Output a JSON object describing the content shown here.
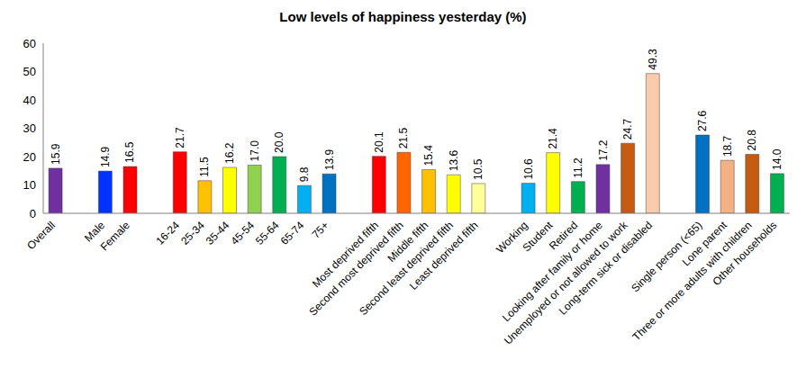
{
  "chart_data": {
    "type": "bar",
    "title": "Low levels of happiness yesterday (%)",
    "categories": [
      "Overall",
      null,
      "Male",
      "Female",
      null,
      "16-24",
      "25-34",
      "35-44",
      "45-54",
      "55-64",
      "65-74",
      "75+",
      null,
      "Most deprived fifth",
      "Second most deprived fifth",
      "Middle fifth",
      "Second least deprived fifth",
      "Least deprived fifth",
      null,
      "Working",
      "Student",
      "Retired",
      "Looking after family or home",
      "Unemployed or not allowed to work",
      "Long-term sick or disabled",
      null,
      "Single person (<65)",
      "Lone parent",
      "Three or more adults with children",
      "Other households"
    ],
    "values": [
      15.9,
      null,
      14.9,
      16.5,
      null,
      21.7,
      11.5,
      16.2,
      17.0,
      20.0,
      9.8,
      13.9,
      null,
      20.1,
      21.5,
      15.4,
      13.6,
      10.5,
      null,
      10.6,
      21.4,
      11.2,
      17.2,
      24.7,
      49.3,
      null,
      27.6,
      18.7,
      20.8,
      14.0
    ],
    "value_labels": [
      "15.9",
      null,
      "14.9",
      "16.5",
      null,
      "21.7",
      "11.5",
      "16.2",
      "17.0",
      "20.0",
      "9.8",
      "13.9",
      null,
      "20.1",
      "21.5",
      "15.4",
      "13.6",
      "10.5",
      null,
      "10.6",
      "21.4",
      "11.2",
      "17.2",
      "24.7",
      "49.3",
      null,
      "27.6",
      "18.7",
      "20.8",
      "14.0"
    ],
    "colors": [
      "#7030a0",
      null,
      "#0033ff",
      "#ff0000",
      null,
      "#ff0000",
      "#ffc000",
      "#ffff00",
      "#92d050",
      "#00b050",
      "#00b0f0",
      "#0070c0",
      null,
      "#ff0000",
      "#ff6600",
      "#ffc000",
      "#ffff00",
      "#ffff99",
      null,
      "#00b0f0",
      "#ffff00",
      "#00b050",
      "#7030a0",
      "#c55a11",
      "#f8cbad",
      null,
      "#0070c0",
      "#f4b183",
      "#c55a11",
      "#00b050"
    ],
    "ylim": [
      0,
      60
    ],
    "yticks": [
      0,
      10,
      20,
      30,
      40,
      50,
      60
    ],
    "grid": false,
    "data_labels": true
  }
}
